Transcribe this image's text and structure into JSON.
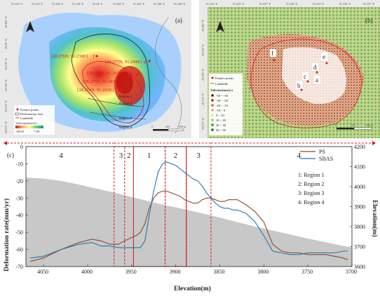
{
  "panel_a": {
    "panel_label": "(a)",
    "top_ticks": [
      "91.222° E",
      "91.224° E",
      "91.226° E",
      "91.228° E",
      "91.24° E",
      "91.242° E",
      "91.244° E",
      "91.246° E",
      "91.248° E"
    ],
    "left_ticks": [
      "29.282° N",
      "29.28° N",
      "29.278° N",
      "29.276° N",
      "29.274° N",
      "29.272° N"
    ],
    "feature_points": [
      {
        "id": "f",
        "coord": "[28.276N, 91.238E]"
      },
      {
        "id": "e",
        "coord": "[28.277N, 91.244E]"
      },
      {
        "id": "d",
        "coord": "[28.276N, 91.243E]"
      },
      {
        "id": "c",
        "coord": "[28.275N, 91.243E]"
      },
      {
        "id": "b",
        "coord": "[28.274N, 91.243E]"
      }
    ],
    "regions": [
      "Region 1",
      "Region 2",
      "Region 3",
      "Region 4"
    ],
    "legend": {
      "items": [
        "Feature points",
        "Deformation area",
        "Landslide"
      ],
      "velocity_title": "Velocity(mm/yr)",
      "velocity_min": "-58.65",
      "velocity_max": "7.09"
    },
    "scale": [
      "0",
      "200",
      "400 m"
    ],
    "colors": {
      "ramp": [
        "#d7191c",
        "#fdae61",
        "#ffff8c",
        "#5fd35f",
        "#2b83ba",
        "#70c0ff"
      ]
    }
  },
  "panel_b": {
    "panel_label": "(b)",
    "top_ticks": [
      "91.222° E",
      "91.225° E",
      "91.227° E",
      "91.230° E",
      "91.232° E",
      "91.235° E",
      "91.237° E"
    ],
    "left_ticks": [
      "29.280° N",
      "29.278° N",
      "29.276° N",
      "29.274° N",
      "29.272° N"
    ],
    "feature_labels": [
      "f",
      "e",
      "d",
      "c",
      "b",
      "a"
    ],
    "legend": {
      "items": [
        "Feature points",
        "Landslide"
      ],
      "velocity_title": "Velocity(mm/yr)",
      "classes": [
        "-50 ~ -30",
        "-30 ~ -20",
        "-20 ~ -10",
        "-10 ~ 0",
        "0 ~ 10",
        "10 ~ 20",
        "20 ~ 30",
        "30 ~ 50"
      ]
    },
    "scale": [
      "0",
      "250",
      "500 m"
    ],
    "colors": {
      "classes": [
        "#7a0000",
        "#b2182b",
        "#d6604d",
        "#f4a582",
        "#d9ef8b",
        "#91cf60",
        "#1a9850",
        "#006837"
      ]
    }
  },
  "panel_c": {
    "panel_label": "(c)",
    "region_numbers_top": [
      "4",
      "3",
      "2",
      "1",
      "2",
      "3",
      "4"
    ],
    "region_key": [
      "1: Region 1",
      "2: Region 2",
      "3: Region 3",
      "4: Region 4"
    ],
    "colors": {
      "ps": "#8b4a2b",
      "sbas": "#1f77b4",
      "terrain": "#c8c8c8",
      "frame": "#d7191c"
    }
  },
  "chart_data": {
    "type": "line",
    "xlabel": "Elevation(m)",
    "ylabel": "Deformation rate(mm/yr)",
    "y2label": "Elevation(m)",
    "xlim": [
      4070,
      3700
    ],
    "ylim": [
      -70,
      0
    ],
    "y2lim": [
      3600,
      4200
    ],
    "x_ticks": [
      4050,
      4000,
      3950,
      3900,
      3850,
      3800,
      3750,
      3700
    ],
    "y_ticks": [
      -70,
      -60,
      -50,
      -40,
      -30,
      -20,
      -10,
      0
    ],
    "y2_ticks": [
      3600,
      3700,
      3800,
      3900,
      4000,
      4100,
      4200
    ],
    "legend": "top-right",
    "series": [
      {
        "name": "PS",
        "x": [
          4065,
          4050,
          4030,
          4010,
          3995,
          3985,
          3975,
          3965,
          3958,
          3950,
          3945,
          3940,
          3935,
          3930,
          3925,
          3920,
          3915,
          3910,
          3905,
          3900,
          3895,
          3890,
          3885,
          3880,
          3875,
          3870,
          3865,
          3860,
          3855,
          3850,
          3845,
          3840,
          3835,
          3830,
          3820,
          3810,
          3800,
          3790,
          3780,
          3770,
          3760,
          3750,
          3740,
          3730,
          3720,
          3710,
          3705
        ],
        "values": [
          -67,
          -65,
          -60,
          -56,
          -54,
          -55,
          -57,
          -57,
          -55,
          -53,
          -52,
          -50,
          -45,
          -36,
          -30,
          -27,
          -26,
          -26,
          -27,
          -28,
          -29,
          -31,
          -32,
          -33,
          -33,
          -31,
          -30,
          -30,
          -31,
          -32,
          -32,
          -31,
          -31,
          -31,
          -34,
          -38,
          -44,
          -57,
          -61,
          -62,
          -62,
          -63,
          -63,
          -63,
          -64,
          -65,
          -66
        ]
      },
      {
        "name": "SBAS",
        "x": [
          4065,
          4050,
          4030,
          4010,
          3995,
          3985,
          3975,
          3965,
          3958,
          3950,
          3945,
          3940,
          3935,
          3930,
          3925,
          3920,
          3915,
          3910,
          3905,
          3900,
          3895,
          3890,
          3885,
          3880,
          3875,
          3870,
          3865,
          3860,
          3855,
          3850,
          3845,
          3840,
          3835,
          3830,
          3820,
          3810,
          3800,
          3790,
          3780,
          3770,
          3760,
          3750,
          3740,
          3730,
          3720,
          3710,
          3705
        ],
        "values": [
          -65,
          -64,
          -60,
          -57,
          -56,
          -58,
          -58,
          -59,
          -59,
          -59,
          -59,
          -59,
          -55,
          -40,
          -26,
          -15,
          -10,
          -9,
          -10,
          -11,
          -13,
          -15,
          -17,
          -19,
          -20,
          -23,
          -27,
          -30,
          -33,
          -35,
          -36,
          -36,
          -37,
          -37,
          -39,
          -44,
          -52,
          -61,
          -62,
          -63,
          -63,
          -62,
          -62,
          -62,
          -62,
          -61,
          -61
        ]
      }
    ],
    "terrain": {
      "x": [
        4070,
        4050,
        4030,
        4010,
        3990,
        3970,
        3950,
        3930,
        3910,
        3890,
        3870,
        3850,
        3830,
        3810,
        3790,
        3770,
        3750,
        3730,
        3710,
        3700
      ],
      "values": [
        4045,
        4040,
        4028,
        4010,
        3990,
        3970,
        3948,
        3926,
        3905,
        3887,
        3866,
        3845,
        3822,
        3800,
        3780,
        3760,
        3740,
        3722,
        3703,
        3695
      ]
    }
  }
}
